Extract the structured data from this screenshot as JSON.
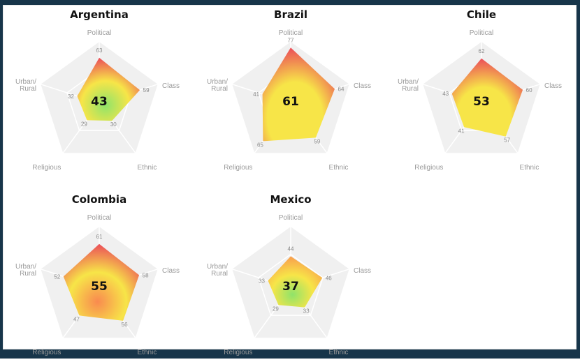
{
  "chart_data": [
    {
      "type": "radar",
      "title": "Argentina",
      "axes": [
        "Political",
        "Class",
        "Ethnic",
        "Religious",
        "Urban/\nRural"
      ],
      "values": [
        63,
        59,
        30,
        29,
        32
      ],
      "score": "43",
      "range": [
        0,
        100
      ]
    },
    {
      "type": "radar",
      "title": "Brazil",
      "axes": [
        "Political",
        "Class",
        "Ethnic",
        "Religious",
        "Urban/\nRural"
      ],
      "values": [
        77,
        64,
        59,
        65,
        41
      ],
      "score": "61",
      "range": [
        0,
        100
      ]
    },
    {
      "type": "radar",
      "title": "Chile",
      "axes": [
        "Political",
        "Class",
        "Ethnic",
        "Religious",
        "Urban/\nRural"
      ],
      "values": [
        62,
        60,
        57,
        41,
        43
      ],
      "score": "53",
      "range": [
        0,
        100
      ]
    },
    {
      "type": "radar",
      "title": "Colombia",
      "axes": [
        "Political",
        "Class",
        "Ethnic",
        "Religious",
        "Urban/\nRural"
      ],
      "values": [
        61,
        58,
        56,
        47,
        52
      ],
      "score": "55",
      "range": [
        0,
        100
      ]
    },
    {
      "type": "radar",
      "title": "Mexico",
      "axes": [
        "Political",
        "Class",
        "Ethnic",
        "Religious",
        "Urban/\nRural"
      ],
      "values": [
        44,
        46,
        33,
        29,
        33
      ],
      "score": "37",
      "range": [
        0,
        100
      ]
    }
  ],
  "colors": {
    "low": "#8fe36a",
    "mid": "#f7e548",
    "high": "#f98a4f",
    "extreme": "#e8245e",
    "background_pentagon": "#f0f0f0",
    "axis_label": "#9a9a9a",
    "value_label": "#8a8a8a",
    "frame": "#17354a"
  }
}
